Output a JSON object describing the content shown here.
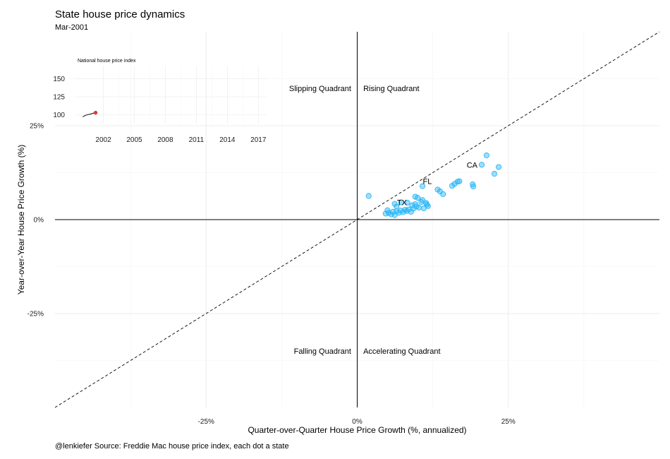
{
  "chart_data": [
    {
      "type": "scatter",
      "title": "State house price dynamics",
      "subtitle": "Mar-2001",
      "xlabel": "Quarter-over-Quarter House Price Growth (%, annualized)",
      "ylabel": "Year-over-Year House Price Growth (%)",
      "caption": "@lenkiefer Source: Freddie Mac house price index, each dot a state",
      "xlim": [
        -50,
        50
      ],
      "ylim": [
        -50,
        50
      ],
      "xticks": [
        -25,
        0,
        25
      ],
      "xtick_labels": [
        "-25%",
        "0%",
        "25%"
      ],
      "yticks": [
        -25,
        0,
        25
      ],
      "ytick_labels": [
        "-25%",
        "0%",
        "25%"
      ],
      "grid": true,
      "reference_line": {
        "style": "dashed",
        "slope": 1,
        "intercept": 0
      },
      "quadrant_labels": [
        {
          "text": "Slipping Quadrant",
          "x": -1,
          "y": 35,
          "anchor": "end"
        },
        {
          "text": "Rising Quadrant",
          "x": 1,
          "y": 35,
          "anchor": "start"
        },
        {
          "text": "Falling Quadrant",
          "x": -1,
          "y": -35,
          "anchor": "end"
        },
        {
          "text": "Accelerating Quadrant",
          "x": 1,
          "y": -35,
          "anchor": "start"
        }
      ],
      "point_color": "#29b6f6",
      "points": [
        [
          1.9,
          6.3
        ],
        [
          4.7,
          1.6
        ],
        [
          5.2,
          1.8
        ],
        [
          5.0,
          2.5
        ],
        [
          5.6,
          1.4
        ],
        [
          5.9,
          2.1
        ],
        [
          6.2,
          1.2
        ],
        [
          6.5,
          2.2
        ],
        [
          6.9,
          1.8
        ],
        [
          7.2,
          2.4
        ],
        [
          7.6,
          2.0
        ],
        [
          7.9,
          2.6
        ],
        [
          8.2,
          2.3
        ],
        [
          8.5,
          2.7
        ],
        [
          8.9,
          2.1
        ],
        [
          9.3,
          2.9
        ],
        [
          9.1,
          3.8
        ],
        [
          9.6,
          4.1
        ],
        [
          9.8,
          3.5
        ],
        [
          10.2,
          3.2
        ],
        [
          10.6,
          4.7
        ],
        [
          10.8,
          5.2
        ],
        [
          11.0,
          3.0
        ],
        [
          11.4,
          4.4
        ],
        [
          11.5,
          4.0
        ],
        [
          11.7,
          3.6
        ],
        [
          10.0,
          5.8
        ],
        [
          9.6,
          6.1
        ],
        [
          7.3,
          4.6
        ],
        [
          6.5,
          3.5
        ],
        [
          6.2,
          4.2
        ],
        [
          8.3,
          4.5
        ],
        [
          10.8,
          8.9
        ],
        [
          13.3,
          8.0
        ],
        [
          13.7,
          7.5
        ],
        [
          14.2,
          6.8
        ],
        [
          15.7,
          9.0
        ],
        [
          16.1,
          9.5
        ],
        [
          16.6,
          10.1
        ],
        [
          16.9,
          10.2
        ],
        [
          19.1,
          9.4
        ],
        [
          19.2,
          8.8
        ],
        [
          20.6,
          14.6
        ],
        [
          21.4,
          17.1
        ],
        [
          22.7,
          12.2
        ],
        [
          23.4,
          14.0
        ]
      ],
      "point_labels": [
        {
          "text": "CA",
          "x": 19.0,
          "y": 14.6
        },
        {
          "text": "FL",
          "x": 11.6,
          "y": 10.2
        },
        {
          "text": "TX",
          "x": 7.4,
          "y": 4.6
        }
      ]
    },
    {
      "type": "line",
      "title": "National house price index",
      "xlim": [
        1999.3,
        2017.8
      ],
      "ylim": [
        88,
        168
      ],
      "xticks": [
        2002,
        2005,
        2008,
        2011,
        2014,
        2017
      ],
      "xtick_labels": [
        "2002",
        "2005",
        "2008",
        "2011",
        "2014",
        "2017"
      ],
      "yticks": [
        100,
        125,
        150
      ],
      "ytick_labels": [
        "100",
        "125",
        "150"
      ],
      "line_color": "#000000",
      "marker_color": "#e8383d",
      "x": [
        2000.0,
        2000.25,
        2000.5,
        2000.75,
        2001.0,
        2001.25
      ],
      "y": [
        97.3,
        99.3,
        100.4,
        101.1,
        102.2,
        103.0
      ]
    }
  ]
}
